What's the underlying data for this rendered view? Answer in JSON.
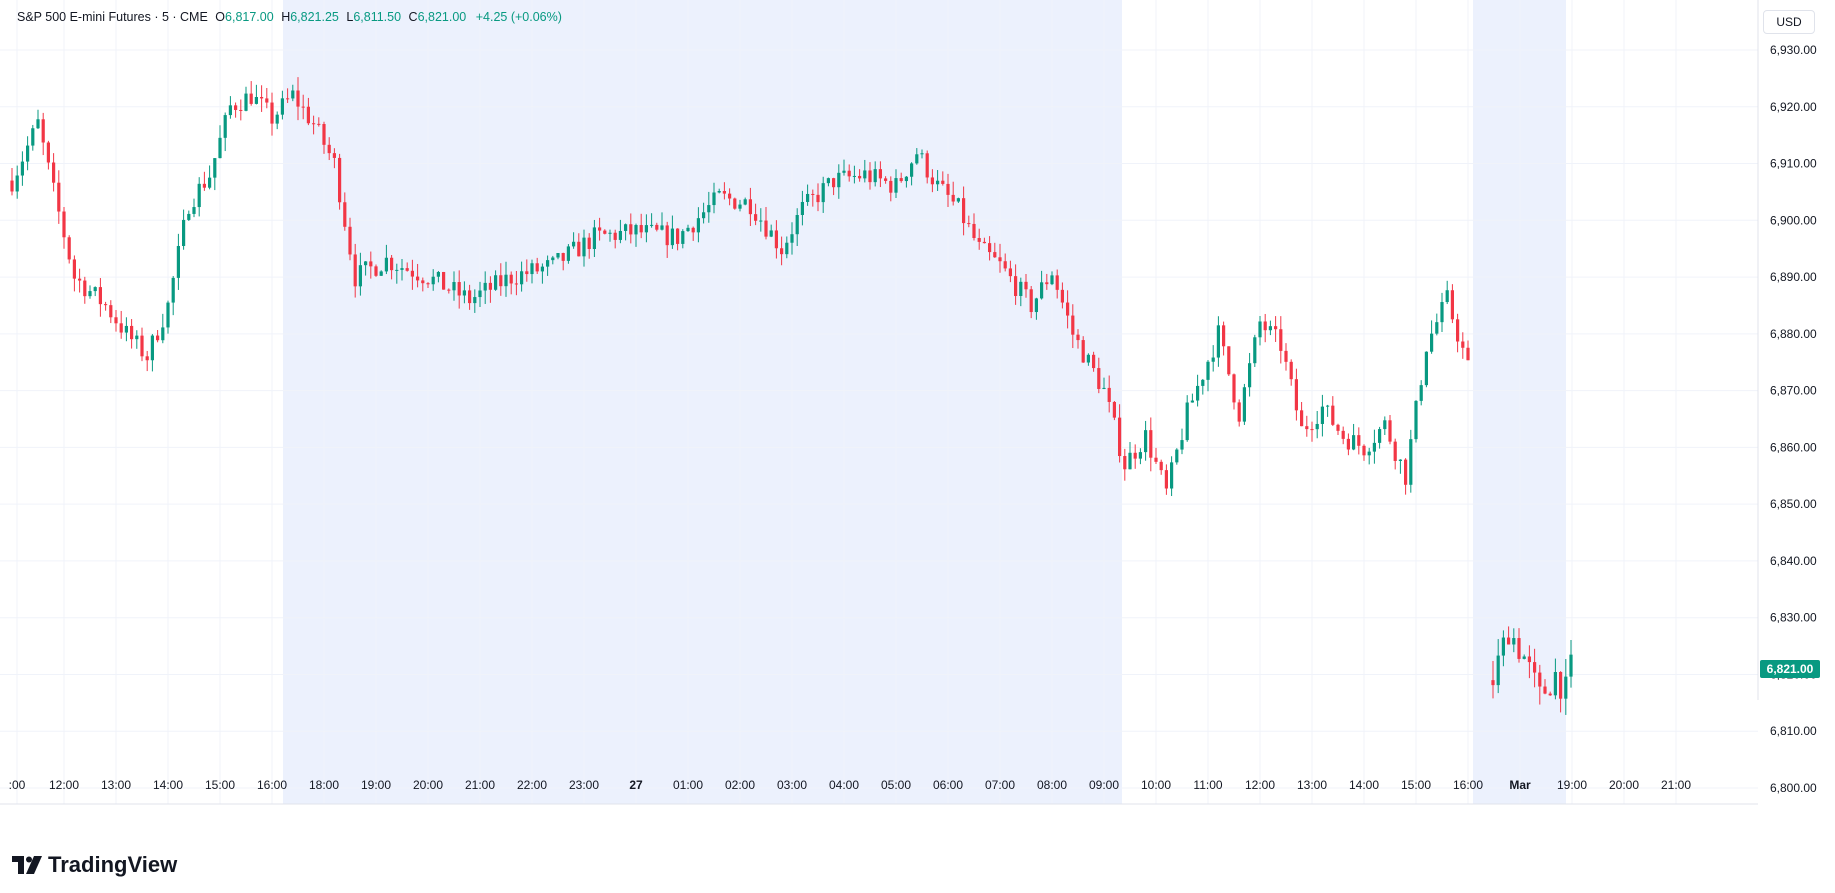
{
  "legend": {
    "symbol": "S&P 500 E-mini Futures · 5 · CME",
    "open_label": "O",
    "open": "6,817.00",
    "high_label": "H",
    "high": "6,821.25",
    "low_label": "L",
    "low": "6,811.50",
    "close_label": "C",
    "close": "6,821.00",
    "change": "+4.25 (+0.06%)"
  },
  "currency": "USD",
  "last_price": "6,821.00",
  "brand": "TradingView",
  "colors": {
    "up": "#089981",
    "down": "#f23645",
    "session_shade": "#ecf1fd",
    "grid": "#f0f3fa"
  },
  "chart_data": {
    "type": "candlestick",
    "y_axis": {
      "ticks": [
        "6,930.00",
        "6,920.00",
        "6,910.00",
        "6,900.00",
        "6,890.00",
        "6,880.00",
        "6,870.00",
        "6,860.00",
        "6,850.00",
        "6,840.00",
        "6,830.00",
        "6,820.00",
        "6,810.00",
        "6,800.00"
      ],
      "range": [
        6797,
        6938
      ]
    },
    "x_axis": {
      "ticks": [
        ":00",
        "12:00",
        "13:00",
        "14:00",
        "15:00",
        "16:00",
        "18:00",
        "19:00",
        "20:00",
        "21:00",
        "22:00",
        "23:00",
        "27",
        "01:00",
        "02:00",
        "03:00",
        "04:00",
        "05:00",
        "06:00",
        "07:00",
        "08:00",
        "09:00",
        "10:00",
        "11:00",
        "12:00",
        "13:00",
        "14:00",
        "15:00",
        "16:00",
        "Mar",
        "19:00",
        "20:00",
        "21:00"
      ]
    },
    "session_shading": [
      [
        "16:15",
        "09:30"
      ],
      [
        "16:15",
        "19:00"
      ]
    ],
    "series": [
      {
        "anchors": [
          [
            0,
            6907
          ],
          [
            5,
            6917
          ],
          [
            8,
            6905
          ],
          [
            12,
            6890
          ],
          [
            18,
            6885
          ],
          [
            22,
            6880
          ],
          [
            26,
            6876
          ],
          [
            30,
            6885
          ],
          [
            34,
            6903
          ],
          [
            38,
            6908
          ],
          [
            42,
            6920
          ],
          [
            46,
            6922
          ],
          [
            50,
            6918
          ],
          [
            54,
            6922
          ],
          [
            58,
            6917
          ],
          [
            62,
            6910
          ],
          [
            66,
            6890
          ],
          [
            72,
            6893
          ],
          [
            80,
            6890
          ],
          [
            88,
            6886
          ],
          [
            96,
            6890
          ],
          [
            104,
            6892
          ],
          [
            112,
            6897
          ],
          [
            120,
            6898
          ],
          [
            128,
            6897
          ],
          [
            136,
            6904
          ],
          [
            142,
            6903
          ],
          [
            148,
            6895
          ],
          [
            152,
            6902
          ],
          [
            158,
            6907
          ],
          [
            164,
            6908
          ],
          [
            170,
            6906
          ],
          [
            174,
            6912
          ],
          [
            178,
            6906
          ],
          [
            182,
            6902
          ],
          [
            186,
            6895
          ],
          [
            190,
            6892
          ],
          [
            196,
            6885
          ],
          [
            200,
            6891
          ],
          [
            204,
            6880
          ],
          [
            210,
            6870
          ],
          [
            214,
            6857
          ],
          [
            218,
            6862
          ],
          [
            222,
            6852
          ],
          [
            226,
            6866
          ],
          [
            232,
            6880
          ],
          [
            236,
            6866
          ],
          [
            240,
            6882
          ],
          [
            244,
            6878
          ],
          [
            248,
            6863
          ],
          [
            252,
            6867
          ],
          [
            256,
            6862
          ],
          [
            260,
            6860
          ],
          [
            264,
            6864
          ],
          [
            268,
            6855
          ],
          [
            272,
            6878
          ],
          [
            276,
            6886
          ],
          [
            280,
            6874
          ]
        ],
        "volatility": 2.4
      },
      {
        "anchors": [
          [
            0,
            6819
          ],
          [
            3,
            6828
          ],
          [
            6,
            6823
          ],
          [
            9,
            6816
          ],
          [
            12,
            6820
          ],
          [
            14,
            6817
          ],
          [
            15,
            6821
          ]
        ],
        "volatility": 3.5
      }
    ]
  }
}
